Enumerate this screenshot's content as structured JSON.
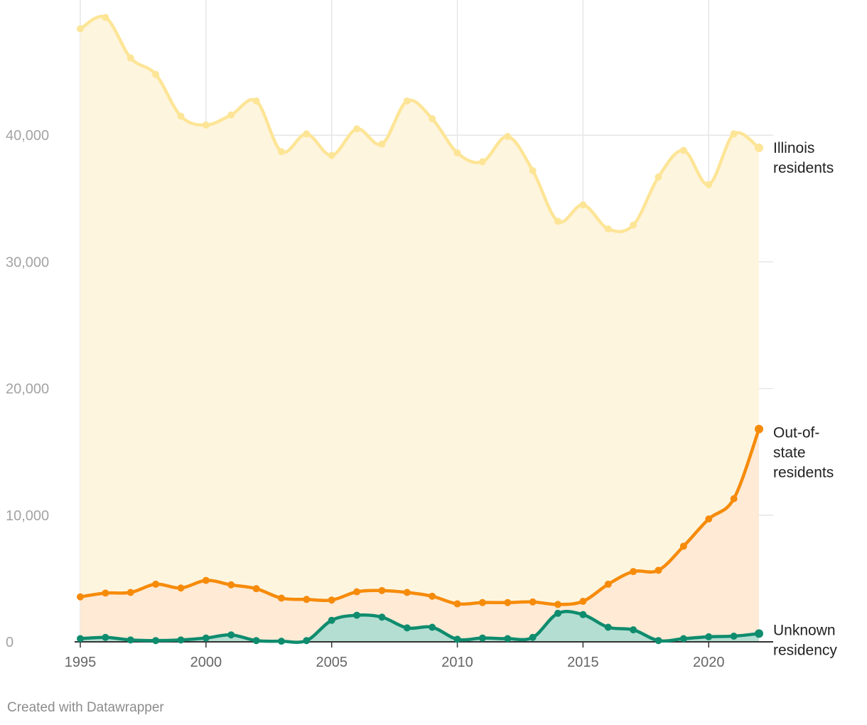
{
  "chart_data": {
    "type": "area",
    "title": "",
    "xlabel": "",
    "ylabel": "",
    "ylim": [
      0,
      50000
    ],
    "xlim": [
      1995,
      2022
    ],
    "grid": true,
    "x": [
      1995,
      1996,
      1997,
      1998,
      1999,
      2000,
      2001,
      2002,
      2003,
      2004,
      2005,
      2006,
      2007,
      2008,
      2009,
      2010,
      2011,
      2012,
      2013,
      2014,
      2015,
      2016,
      2017,
      2018,
      2019,
      2020,
      2021,
      2022
    ],
    "x_ticks": [
      1995,
      2000,
      2005,
      2010,
      2015,
      2020
    ],
    "x_tick_labels": [
      "1995",
      "2000",
      "2005",
      "2010",
      "2015",
      "2020"
    ],
    "y_ticks": [
      0,
      10000,
      20000,
      30000,
      40000
    ],
    "y_tick_labels": [
      "0",
      "10,000",
      "20,000",
      "30,000",
      "40,000"
    ],
    "series": [
      {
        "name": "Illinois residents",
        "label_lines": [
          "Illinois",
          "residents"
        ],
        "color": "#fde597",
        "fill": "#fef5df",
        "values": [
          48400,
          49300,
          46100,
          44800,
          41500,
          40800,
          41600,
          42700,
          38700,
          40100,
          38400,
          40500,
          39300,
          42700,
          41300,
          38600,
          37900,
          39900,
          37200,
          33200,
          34500,
          32600,
          32900,
          36700,
          38800,
          36100,
          40100,
          39000
        ]
      },
      {
        "name": "Out-of-state residents",
        "label_lines": [
          "Out-of-",
          "state",
          "residents"
        ],
        "color": "#f68b0a",
        "fill": "#feead5",
        "values": [
          3550,
          3850,
          3900,
          4550,
          4250,
          4850,
          4500,
          4200,
          3450,
          3350,
          3300,
          3950,
          4050,
          3900,
          3600,
          3000,
          3100,
          3100,
          3150,
          2950,
          3200,
          4550,
          5550,
          5650,
          7550,
          9700,
          11300,
          16800
        ]
      },
      {
        "name": "Unknown residency",
        "label_lines": [
          "Unknown",
          "residency"
        ],
        "color": "#0f8c6e",
        "fill": "#b4ded2",
        "values": [
          250,
          350,
          150,
          100,
          150,
          300,
          550,
          100,
          50,
          100,
          1700,
          2100,
          1950,
          1100,
          1150,
          200,
          300,
          250,
          350,
          2250,
          2150,
          1150,
          950,
          100,
          250,
          400,
          450,
          650
        ]
      }
    ]
  },
  "footer": {
    "credit": "Created with Datawrapper"
  }
}
